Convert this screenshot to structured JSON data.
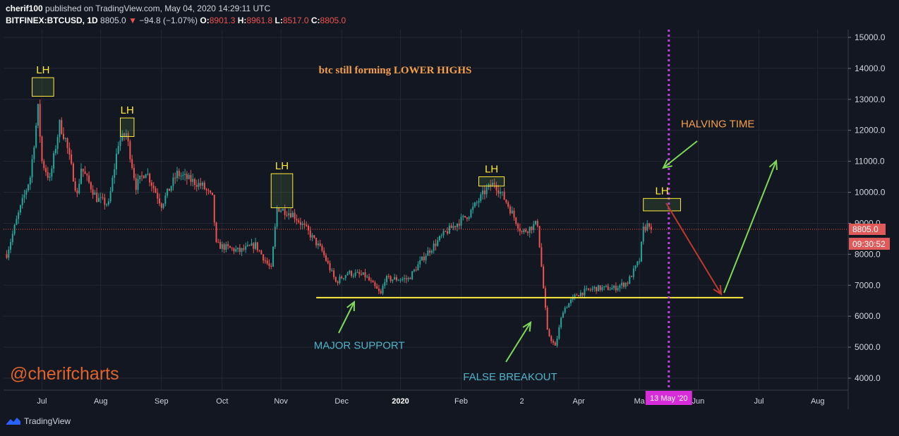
{
  "header": {
    "author": "cherif100",
    "published_text": "published on TradingView.com, May 04, 2020 14:29:11 UTC",
    "symbol": "BITFINEX:BTCUSD, 1D",
    "last": "8805.0",
    "change": "−94.8 (−1.07%)",
    "o_label": "O:",
    "open": "8901.3",
    "h_label": "H:",
    "high": "8961.8",
    "l_label": "L:",
    "low": "8517.0",
    "c_label": "C:",
    "close": "8805.0"
  },
  "watermark": "@cherifcharts",
  "footer": {
    "brand": "TradingView"
  },
  "colors": {
    "background": "#131722",
    "up": "#26a69a",
    "down": "#ef5350",
    "support": "#ffeb3b",
    "annotation": "#f5a04a",
    "teal_text": "#4fb3c8",
    "arrow_green": "#7ed957",
    "arrow_red": "#c0392b",
    "halving_line": "#c240e6",
    "price_tag": "#e05a5a"
  },
  "chart_data": {
    "type": "candlestick",
    "title": "btc still forming LOWER HIGHS",
    "ylim": [
      3800,
      15300
    ],
    "yticks": [
      "4000.0",
      "5000.0",
      "6000.0",
      "7000.0",
      "8000.0",
      "9000.0",
      "10000.0",
      "11000.0",
      "12000.0",
      "13000.0",
      "14000.0",
      "15000.0"
    ],
    "xticks": [
      "Jul",
      "Aug",
      "Sep",
      "Oct",
      "Nov",
      "Dec",
      "2020",
      "Feb",
      "2",
      "Apr",
      "Ma",
      "Jun",
      "Jul",
      "Aug"
    ],
    "start_date": "2019-06-10",
    "last_price": "8805.0",
    "countdown": "09:30:52",
    "cursor_date": "13 May '20",
    "waypoints": [
      [
        "2019-06-10",
        8000
      ],
      [
        "2019-06-16",
        9300
      ],
      [
        "2019-06-22",
        10500
      ],
      [
        "2019-06-26",
        12700
      ],
      [
        "2019-06-28",
        11000
      ],
      [
        "2019-07-02",
        10400
      ],
      [
        "2019-07-07",
        12200
      ],
      [
        "2019-07-10",
        11700
      ],
      [
        "2019-07-16",
        9900
      ],
      [
        "2019-07-18",
        10800
      ],
      [
        "2019-07-26",
        9800
      ],
      [
        "2019-08-01",
        9600
      ],
      [
        "2019-08-06",
        11600
      ],
      [
        "2019-08-10",
        11900
      ],
      [
        "2019-08-15",
        10200
      ],
      [
        "2019-08-20",
        10700
      ],
      [
        "2019-08-28",
        9600
      ],
      [
        "2019-09-05",
        10600
      ],
      [
        "2019-09-18",
        10200
      ],
      [
        "2019-09-23",
        9800
      ],
      [
        "2019-09-25",
        8300
      ],
      [
        "2019-10-07",
        8100
      ],
      [
        "2019-10-15",
        8300
      ],
      [
        "2019-10-23",
        7500
      ],
      [
        "2019-10-26",
        9500
      ],
      [
        "2019-11-03",
        9300
      ],
      [
        "2019-11-10",
        8800
      ],
      [
        "2019-11-18",
        8100
      ],
      [
        "2019-11-25",
        7100
      ],
      [
        "2019-12-01",
        7400
      ],
      [
        "2019-12-10",
        7300
      ],
      [
        "2019-12-18",
        6700
      ],
      [
        "2019-12-20",
        7200
      ],
      [
        "2020-01-01",
        7200
      ],
      [
        "2020-01-10",
        8000
      ],
      [
        "2020-01-20",
        8700
      ],
      [
        "2020-02-01",
        9300
      ],
      [
        "2020-02-10",
        10100
      ],
      [
        "2020-02-14",
        10300
      ],
      [
        "2020-02-20",
        9700
      ],
      [
        "2020-02-28",
        8700
      ],
      [
        "2020-03-07",
        9000
      ],
      [
        "2020-03-12",
        5500
      ],
      [
        "2020-03-16",
        5000
      ],
      [
        "2020-03-20",
        6200
      ],
      [
        "2020-03-27",
        6700
      ],
      [
        "2020-04-05",
        6900
      ],
      [
        "2020-04-15",
        6900
      ],
      [
        "2020-04-22",
        7100
      ],
      [
        "2020-04-28",
        7800
      ],
      [
        "2020-04-30",
        8800
      ],
      [
        "2020-05-03",
        9000
      ],
      [
        "2020-05-04",
        8805
      ]
    ],
    "annotations": [
      {
        "text": "LH",
        "date": "2019-06-26",
        "y": 13400,
        "box": [
          "2019-06-23",
          13100,
          "2019-07-04",
          13700
        ]
      },
      {
        "text": "LH",
        "date": "2019-08-08",
        "y": 12100,
        "box": [
          "2019-08-07",
          11800,
          "2019-08-14",
          12400
        ]
      },
      {
        "text": "LH",
        "date": "2019-10-28",
        "y": 10100,
        "box": [
          "2019-10-23",
          9500,
          "2019-11-03",
          10600
        ]
      },
      {
        "text": "LH",
        "date": "2020-02-14",
        "y": 10350,
        "box": [
          "2020-02-06",
          10200,
          "2020-02-19",
          10500
        ]
      },
      {
        "text": "LH",
        "date": "2020-05-06",
        "y": 9400,
        "box": [
          "2020-04-30",
          9400,
          "2020-05-19",
          9800
        ]
      },
      {
        "text": "HALVING TIME",
        "date": "2020-06-07",
        "y": 12100
      },
      {
        "text": "MAJOR SUPPORT",
        "date": "2019-12-07",
        "y": 4950
      },
      {
        "text": "FALSE BREAKOUT",
        "date": "2020-02-22",
        "y": 3930
      }
    ],
    "support": {
      "y": 6600,
      "from": "2019-11-15",
      "to": "2020-06-20"
    },
    "halving_date": "2020-05-13"
  }
}
